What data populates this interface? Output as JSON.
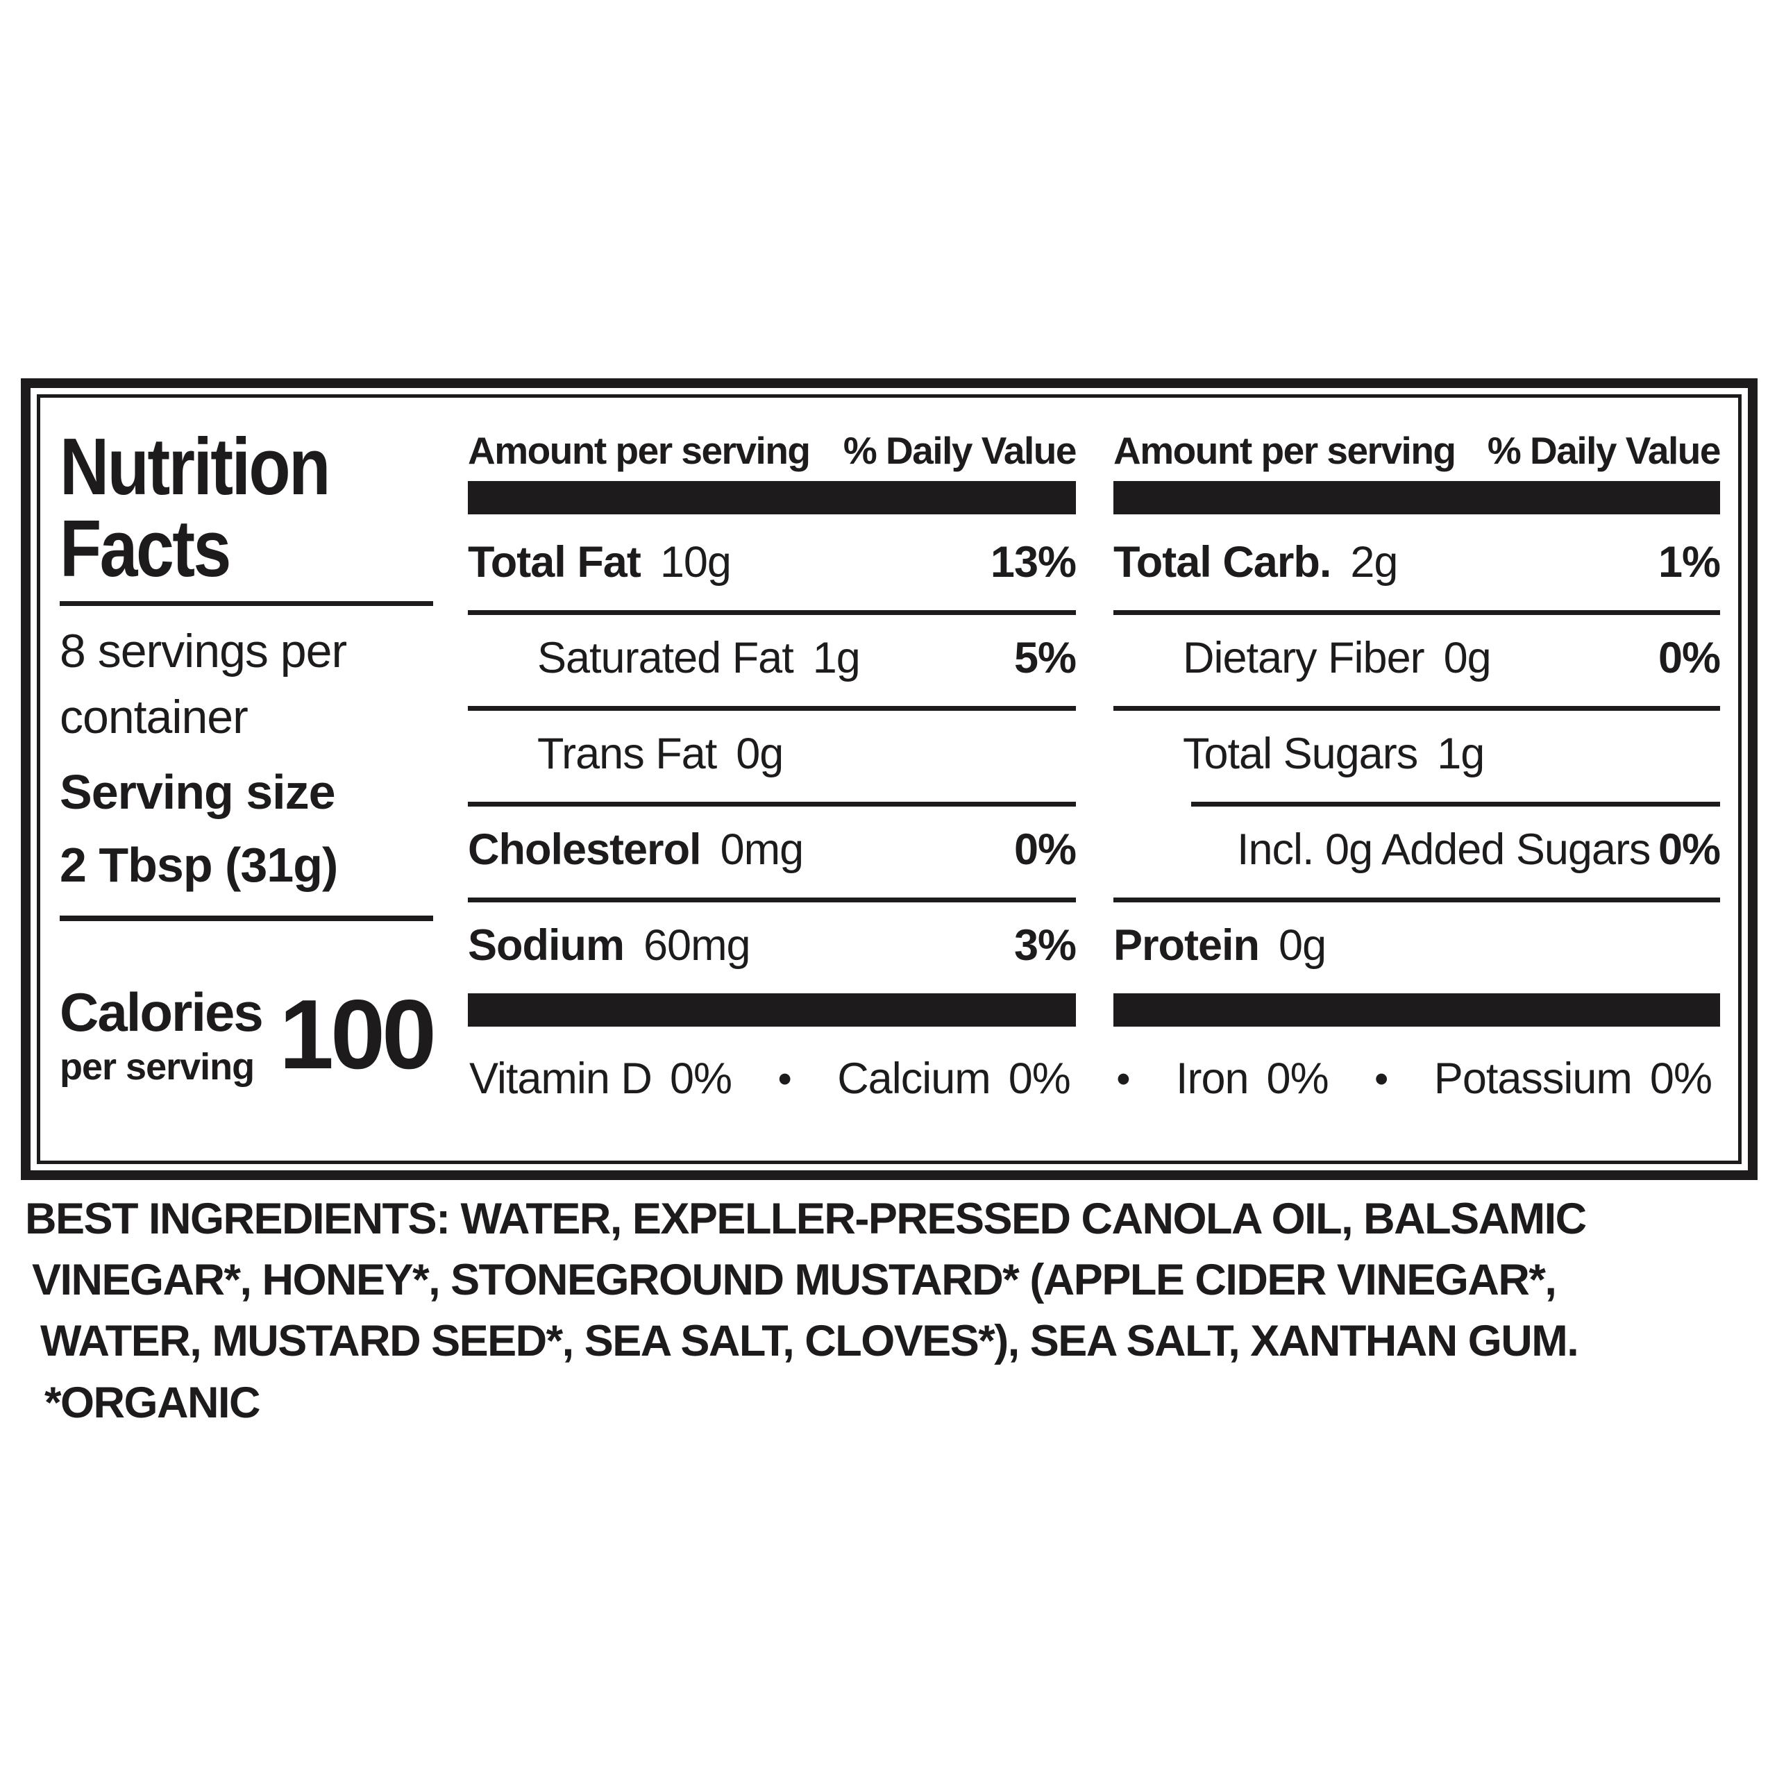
{
  "label": {
    "title_line1": "Nutrition",
    "title_line2": "Facts",
    "servings_line1": "8 servings per",
    "servings_line2": "container",
    "serving_size_label": "Serving size",
    "serving_size_value": "2 Tbsp (31g)",
    "calories_label": "Calories",
    "calories_sub": "per serving",
    "calories_value": "100",
    "col_header_amount": "Amount per serving",
    "col_header_dv": "% Daily Value",
    "middle_rows": [
      {
        "name": "Total Fat",
        "amount": "10g",
        "dv": "13%"
      },
      {
        "name": "Saturated Fat",
        "amount": "1g",
        "dv": "5%"
      },
      {
        "name": "Trans Fat",
        "amount": "0g",
        "dv": ""
      },
      {
        "name": "Cholesterol",
        "amount": "0mg",
        "dv": "0%"
      },
      {
        "name": "Sodium",
        "amount": "60mg",
        "dv": "3%"
      }
    ],
    "right_rows": [
      {
        "name": "Total Carb.",
        "amount": "2g",
        "dv": "1%"
      },
      {
        "name": "Dietary Fiber",
        "amount": "0g",
        "dv": "0%"
      },
      {
        "name": "Total Sugars",
        "amount": "1g",
        "dv": ""
      },
      {
        "name": "Incl. 0g Added Sugars",
        "amount": "",
        "dv": "0%"
      },
      {
        "name": "Protein",
        "amount": "0g",
        "dv": ""
      }
    ],
    "vitamins": [
      {
        "name": "Vitamin D",
        "value": "0%"
      },
      {
        "name": "Calcium",
        "value": "0%"
      },
      {
        "name": "Iron",
        "value": "0%"
      },
      {
        "name": "Potassium",
        "value": "0%"
      }
    ],
    "bullet": "•"
  },
  "ingredients": {
    "line1": "BEST INGREDIENTS: WATER, EXPELLER-PRESSED CANOLA OIL, BALSAMIC",
    "line2": "VINEGAR*, HONEY*, STONEGROUND MUSTARD* (APPLE CIDER VINEGAR*,",
    "line3": "WATER, MUSTARD SEED*, SEA SALT, CLOVES*), SEA SALT, XANTHAN GUM.",
    "line4": "*ORGANIC"
  },
  "colors": {
    "ink": "#1d1b1b",
    "background": "#ffffff"
  }
}
